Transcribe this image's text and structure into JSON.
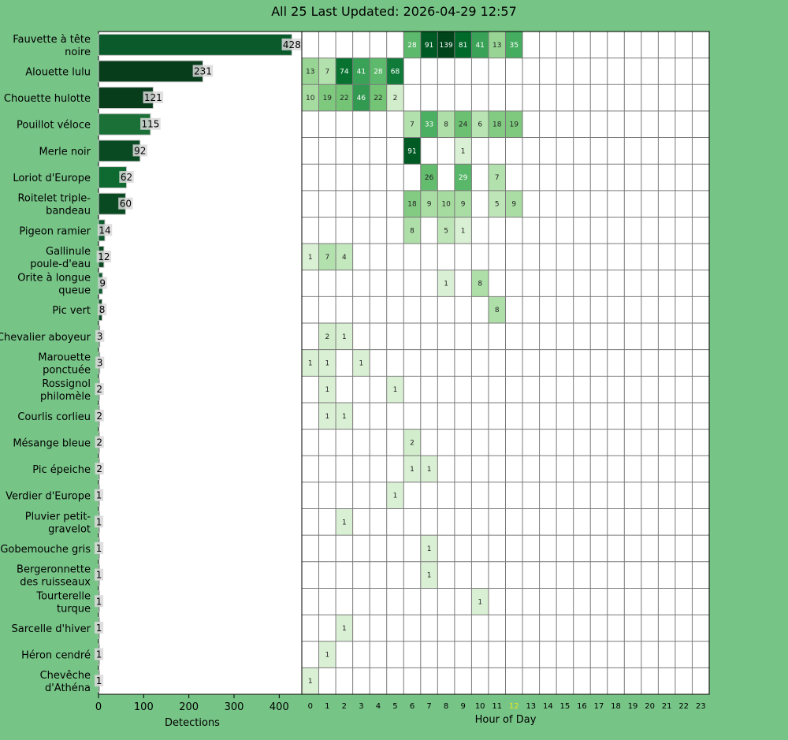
{
  "title": "All 25 Last Updated: 2026-04-29 12:57",
  "colors": {
    "background": "#77c487",
    "highlight_hour": "#e8e81a",
    "grid_line": "#7a7a7a"
  },
  "chart_data": [
    {
      "type": "bar",
      "orientation": "horizontal",
      "xlabel": "Detections",
      "xlim": [
        0,
        450
      ],
      "xticks": [
        0,
        100,
        200,
        300,
        400
      ],
      "categories": [
        "Fauvette à tête noire",
        "Alouette lulu",
        "Chouette hulotte",
        "Pouillot véloce",
        "Merle noir",
        "Loriot d'Europe",
        "Roitelet triple-bandeau",
        "Pigeon ramier",
        "Gallinule poule-d'eau",
        "Orite à longue queue",
        "Pic vert",
        "Chevalier aboyeur",
        "Marouette ponctuée",
        "Rossignol philomèle",
        "Courlis corlieu",
        "Mésange bleue",
        "Pic épeiche",
        "Verdier d'Europe",
        "Pluvier petit-gravelot",
        "Gobemouche gris",
        "Bergeronnette des ruisseaux",
        "Tourterelle turque",
        "Sarcelle d'hiver",
        "Héron cendré",
        "Chevêche d'Athéna"
      ],
      "category_lines": [
        [
          "Fauvette à tête",
          "noire"
        ],
        [
          "Alouette lulu"
        ],
        [
          "Chouette hulotte"
        ],
        [
          "Pouillot véloce"
        ],
        [
          "Merle noir"
        ],
        [
          "Loriot d'Europe"
        ],
        [
          "Roitelet triple-",
          "bandeau"
        ],
        [
          "Pigeon ramier"
        ],
        [
          "Gallinule",
          "poule-d'eau"
        ],
        [
          "Orite à longue",
          "queue"
        ],
        [
          "Pic vert"
        ],
        [
          "Chevalier aboyeur"
        ],
        [
          "Marouette",
          "ponctuée"
        ],
        [
          "Rossignol",
          "philomèle"
        ],
        [
          "Courlis corlieu"
        ],
        [
          "Mésange bleue"
        ],
        [
          "Pic épeiche"
        ],
        [
          "Verdier d'Europe"
        ],
        [
          "Pluvier petit-",
          "gravelot"
        ],
        [
          "Gobemouche gris"
        ],
        [
          "Bergeronnette",
          "des ruisseaux"
        ],
        [
          "Tourterelle",
          "turque"
        ],
        [
          "Sarcelle d'hiver"
        ],
        [
          "Héron cendré"
        ],
        [
          "Chevêche",
          "d'Athéna"
        ]
      ],
      "values": [
        428,
        231,
        121,
        115,
        92,
        62,
        60,
        14,
        12,
        9,
        8,
        3,
        3,
        2,
        2,
        2,
        2,
        1,
        1,
        1,
        1,
        1,
        1,
        1,
        1
      ],
      "bar_colors": [
        "#0a5a2c",
        "#083d1c",
        "#083d1c",
        "#1b7038",
        "#0a4a22",
        "#0e6a30",
        "#0a4a22",
        "#0a5a2c",
        "#0a4a22",
        "#0a5a2c",
        "#0a4a22",
        "#0a4a22",
        "#0a4a22",
        "#0a4a22",
        "#0a4a22",
        "#0a4a22",
        "#0a4a22",
        "#0a4a22",
        "#0a4a22",
        "#0a4a22",
        "#0a4a22",
        "#0a4a22",
        "#0a4a22",
        "#0a4a22",
        "#0a4a22"
      ]
    },
    {
      "type": "heatmap",
      "xlabel": "Hour of Day",
      "x": [
        0,
        1,
        2,
        3,
        4,
        5,
        6,
        7,
        8,
        9,
        10,
        11,
        12,
        13,
        14,
        15,
        16,
        17,
        18,
        19,
        20,
        21,
        22,
        23
      ],
      "highlight_x": 12,
      "rows": [
        [
          null,
          null,
          null,
          null,
          null,
          null,
          28,
          91,
          139,
          81,
          41,
          13,
          35,
          null,
          null,
          null,
          null,
          null,
          null,
          null,
          null,
          null,
          null,
          null
        ],
        [
          13,
          7,
          74,
          41,
          28,
          68,
          null,
          null,
          null,
          null,
          null,
          null,
          null,
          null,
          null,
          null,
          null,
          null,
          null,
          null,
          null,
          null,
          null,
          null
        ],
        [
          10,
          19,
          22,
          46,
          22,
          2,
          null,
          null,
          null,
          null,
          null,
          null,
          null,
          null,
          null,
          null,
          null,
          null,
          null,
          null,
          null,
          null,
          null,
          null
        ],
        [
          null,
          null,
          null,
          null,
          null,
          null,
          7,
          33,
          8,
          24,
          6,
          18,
          19,
          null,
          null,
          null,
          null,
          null,
          null,
          null,
          null,
          null,
          null,
          null
        ],
        [
          null,
          null,
          null,
          null,
          null,
          null,
          91,
          null,
          null,
          1,
          null,
          null,
          null,
          null,
          null,
          null,
          null,
          null,
          null,
          null,
          null,
          null,
          null,
          null
        ],
        [
          null,
          null,
          null,
          null,
          null,
          null,
          null,
          26,
          null,
          29,
          null,
          7,
          null,
          null,
          null,
          null,
          null,
          null,
          null,
          null,
          null,
          null,
          null,
          null
        ],
        [
          null,
          null,
          null,
          null,
          null,
          null,
          18,
          9,
          10,
          9,
          null,
          5,
          9,
          null,
          null,
          null,
          null,
          null,
          null,
          null,
          null,
          null,
          null,
          null
        ],
        [
          null,
          null,
          null,
          null,
          null,
          null,
          8,
          null,
          5,
          1,
          null,
          null,
          null,
          null,
          null,
          null,
          null,
          null,
          null,
          null,
          null,
          null,
          null,
          null
        ],
        [
          1,
          7,
          4,
          null,
          null,
          null,
          null,
          null,
          null,
          null,
          null,
          null,
          null,
          null,
          null,
          null,
          null,
          null,
          null,
          null,
          null,
          null,
          null,
          null
        ],
        [
          null,
          null,
          null,
          null,
          null,
          null,
          null,
          null,
          1,
          null,
          8,
          null,
          null,
          null,
          null,
          null,
          null,
          null,
          null,
          null,
          null,
          null,
          null,
          null
        ],
        [
          null,
          null,
          null,
          null,
          null,
          null,
          null,
          null,
          null,
          null,
          null,
          8,
          null,
          null,
          null,
          null,
          null,
          null,
          null,
          null,
          null,
          null,
          null,
          null
        ],
        [
          null,
          2,
          1,
          null,
          null,
          null,
          null,
          null,
          null,
          null,
          null,
          null,
          null,
          null,
          null,
          null,
          null,
          null,
          null,
          null,
          null,
          null,
          null,
          null
        ],
        [
          1,
          1,
          null,
          1,
          null,
          null,
          null,
          null,
          null,
          null,
          null,
          null,
          null,
          null,
          null,
          null,
          null,
          null,
          null,
          null,
          null,
          null,
          null,
          null
        ],
        [
          null,
          1,
          null,
          null,
          null,
          1,
          null,
          null,
          null,
          null,
          null,
          null,
          null,
          null,
          null,
          null,
          null,
          null,
          null,
          null,
          null,
          null,
          null,
          null
        ],
        [
          null,
          1,
          1,
          null,
          null,
          null,
          null,
          null,
          null,
          null,
          null,
          null,
          null,
          null,
          null,
          null,
          null,
          null,
          null,
          null,
          null,
          null,
          null,
          null
        ],
        [
          null,
          null,
          null,
          null,
          null,
          null,
          2,
          null,
          null,
          null,
          null,
          null,
          null,
          null,
          null,
          null,
          null,
          null,
          null,
          null,
          null,
          null,
          null,
          null
        ],
        [
          null,
          null,
          null,
          null,
          null,
          null,
          1,
          1,
          null,
          null,
          null,
          null,
          null,
          null,
          null,
          null,
          null,
          null,
          null,
          null,
          null,
          null,
          null,
          null
        ],
        [
          null,
          null,
          null,
          null,
          null,
          1,
          null,
          null,
          null,
          null,
          null,
          null,
          null,
          null,
          null,
          null,
          null,
          null,
          null,
          null,
          null,
          null,
          null,
          null
        ],
        [
          null,
          null,
          1,
          null,
          null,
          null,
          null,
          null,
          null,
          null,
          null,
          null,
          null,
          null,
          null,
          null,
          null,
          null,
          null,
          null,
          null,
          null,
          null,
          null
        ],
        [
          null,
          null,
          null,
          null,
          null,
          null,
          null,
          1,
          null,
          null,
          null,
          null,
          null,
          null,
          null,
          null,
          null,
          null,
          null,
          null,
          null,
          null,
          null,
          null
        ],
        [
          null,
          null,
          null,
          null,
          null,
          null,
          null,
          1,
          null,
          null,
          null,
          null,
          null,
          null,
          null,
          null,
          null,
          null,
          null,
          null,
          null,
          null,
          null,
          null
        ],
        [
          null,
          null,
          null,
          null,
          null,
          null,
          null,
          null,
          null,
          null,
          1,
          null,
          null,
          null,
          null,
          null,
          null,
          null,
          null,
          null,
          null,
          null,
          null,
          null
        ],
        [
          null,
          null,
          1,
          null,
          null,
          null,
          null,
          null,
          null,
          null,
          null,
          null,
          null,
          null,
          null,
          null,
          null,
          null,
          null,
          null,
          null,
          null,
          null,
          null
        ],
        [
          null,
          1,
          null,
          null,
          null,
          null,
          null,
          null,
          null,
          null,
          null,
          null,
          null,
          null,
          null,
          null,
          null,
          null,
          null,
          null,
          null,
          null,
          null,
          null
        ],
        [
          1,
          null,
          null,
          null,
          null,
          null,
          null,
          null,
          null,
          null,
          null,
          null,
          null,
          null,
          null,
          null,
          null,
          null,
          null,
          null,
          null,
          null,
          null,
          null
        ]
      ]
    }
  ]
}
